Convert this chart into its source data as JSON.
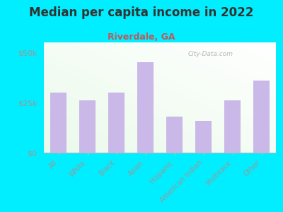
{
  "title": "Median per capita income in 2022",
  "subtitle": "Riverdale, GA",
  "categories": [
    "All",
    "White",
    "Black",
    "Asian",
    "Hispanic",
    "American Indian",
    "Multirace",
    "Other"
  ],
  "values": [
    30000,
    26000,
    30000,
    45000,
    18000,
    16000,
    26000,
    36000
  ],
  "bar_color": "#c9b8e8",
  "background_color": "#00eeff",
  "title_color": "#333333",
  "subtitle_color": "#c05858",
  "tick_label_color": "#999999",
  "ytick_labels": [
    "$0",
    "$25k",
    "$50k"
  ],
  "ytick_values": [
    0,
    25000,
    50000
  ],
  "ylim": [
    0,
    55000
  ],
  "watermark": "City-Data.com",
  "watermark_color": "#aaaaaa"
}
